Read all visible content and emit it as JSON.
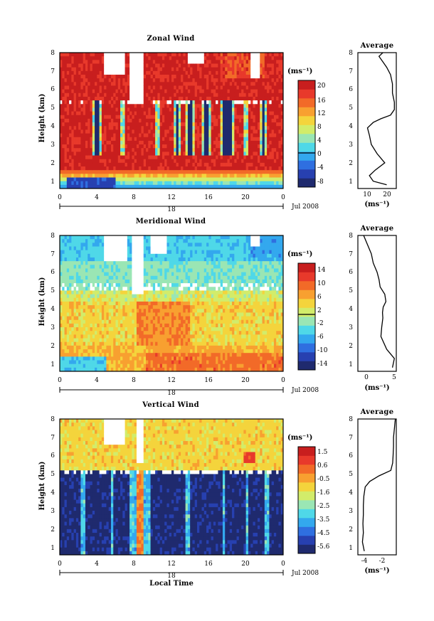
{
  "figure": {
    "x_axis_title": "Local Time",
    "date_label": "Jul 2008",
    "day_label": "18"
  },
  "panels": [
    {
      "title": "Zonal Wind",
      "ylabel": "Height (km)",
      "x_ticks": [
        "0",
        "4",
        "8",
        "12",
        "16",
        "20",
        "0"
      ],
      "y_ticks": [
        "1",
        "2",
        "3",
        "4",
        "5",
        "6",
        "7",
        "8"
      ],
      "colorbar_label": "(ms⁻¹)",
      "colorbar_ticks": [
        "20",
        "16",
        "12",
        "8",
        "4",
        "0",
        "-4",
        "-8"
      ],
      "avg_title": "Average",
      "avg_ticks": [
        "10",
        "20"
      ],
      "avg_unit": "(ms⁻¹)"
    },
    {
      "title": "Meridional Wind",
      "ylabel": "Height (km)",
      "x_ticks": [
        "0",
        "4",
        "8",
        "12",
        "16",
        "20",
        "0"
      ],
      "y_ticks": [
        "1",
        "2",
        "3",
        "4",
        "5",
        "6",
        "7",
        "8"
      ],
      "colorbar_label": "(ms⁻¹)",
      "colorbar_ticks": [
        "14",
        "10",
        "6",
        "2",
        "-2",
        "-6",
        "-10",
        "-14"
      ],
      "avg_title": "Average",
      "avg_ticks": [
        "0",
        "5"
      ],
      "avg_unit": "(ms⁻¹)"
    },
    {
      "title": "Vertical Wind",
      "ylabel": "Height (km)",
      "x_ticks": [
        "0",
        "4",
        "8",
        "12",
        "16",
        "20",
        "0"
      ],
      "y_ticks": [
        "1",
        "2",
        "3",
        "4",
        "5",
        "6",
        "7",
        "8"
      ],
      "colorbar_label": "(ms⁻¹)",
      "colorbar_ticks": [
        "1.5",
        "0.6",
        "-0.5",
        "-1.6",
        "-2.5",
        "-3.5",
        "-4.5",
        "-5.6"
      ],
      "avg_title": "Average",
      "avg_ticks": [
        "-4",
        "-2"
      ],
      "avg_unit": "(ms⁻¹)"
    }
  ],
  "colors": {
    "palette": [
      "#1f2a6e",
      "#2740b0",
      "#2f6fe0",
      "#33a8ee",
      "#4fd8e8",
      "#9ae6b4",
      "#d2ec6a",
      "#f4d43c",
      "#f8a030",
      "#f26a28",
      "#e8392b",
      "#c81e1e"
    ],
    "contour": "#000000",
    "missing": "#ffffff"
  },
  "chart_data": [
    {
      "type": "heatmap",
      "title": "Zonal Wind",
      "xlabel": "Local Time",
      "ylabel": "Height (km)",
      "xlim": [
        0,
        24
      ],
      "ylim": [
        0.6,
        8
      ],
      "clim": [
        -8,
        22
      ],
      "colorbar_ticks": [
        20,
        16,
        12,
        8,
        4,
        0,
        -4,
        -8
      ],
      "contour_levels": [
        0
      ],
      "grid": false,
      "mean_profile": {
        "title": "Average",
        "xlim": [
          5,
          25
        ],
        "ylim": [
          0.6,
          8
        ],
        "x": [
          20,
          13,
          11,
          14,
          19,
          15,
          12,
          11,
          10,
          13,
          17,
          22,
          24,
          24,
          23,
          23,
          22,
          20,
          18,
          16,
          18
        ],
        "y": [
          0.8,
          1.0,
          1.3,
          1.6,
          2.0,
          2.5,
          3.0,
          3.5,
          3.9,
          4.2,
          4.4,
          4.6,
          4.9,
          5.3,
          5.8,
          6.3,
          6.8,
          7.2,
          7.5,
          7.8,
          8.0
        ]
      }
    },
    {
      "type": "heatmap",
      "title": "Meridional Wind",
      "xlabel": "Local Time",
      "ylabel": "Height (km)",
      "xlim": [
        0,
        24
      ],
      "ylim": [
        0.6,
        8
      ],
      "clim": [
        -16,
        16
      ],
      "colorbar_ticks": [
        14,
        10,
        6,
        2,
        -2,
        -6,
        -10,
        -14
      ],
      "contour_levels": [
        0
      ],
      "grid": false,
      "mean_profile": {
        "title": "Average",
        "xlim": [
          -4,
          6
        ],
        "ylim": [
          0.6,
          8
        ],
        "x": [
          5,
          5.5,
          3.5,
          2,
          2.2,
          2.5,
          2.4,
          2.6,
          3.3,
          3,
          1.8,
          1.5,
          1,
          0,
          -0.5,
          -1.5,
          -2.5
        ],
        "y": [
          0.8,
          1.3,
          1.8,
          2.5,
          3.0,
          3.5,
          3.8,
          4.1,
          4.4,
          4.8,
          5.2,
          5.6,
          6.0,
          6.5,
          7.0,
          7.5,
          8.0
        ]
      }
    },
    {
      "type": "heatmap",
      "title": "Vertical Wind",
      "xlabel": "Local Time",
      "ylabel": "Height (km)",
      "xlim": [
        0,
        24
      ],
      "ylim": [
        0.6,
        8
      ],
      "clim": [
        -6,
        2
      ],
      "colorbar_ticks": [
        1.5,
        0.6,
        -0.5,
        -1.6,
        -2.5,
        -3.5,
        -4.5,
        -5.6
      ],
      "grid": false,
      "mean_profile": {
        "title": "Average",
        "xlim": [
          -4.8,
          -0.6
        ],
        "ylim": [
          0.6,
          8
        ],
        "x": [
          -4.1,
          -4.3,
          -4.2,
          -4.25,
          -4.2,
          -4.2,
          -4.15,
          -4.0,
          -3.5,
          -2.5,
          -1.2,
          -1.0,
          -0.95,
          -0.9,
          -0.9,
          -0.8,
          -0.75,
          -0.7
        ],
        "y": [
          0.8,
          1.3,
          1.8,
          2.3,
          2.8,
          3.3,
          3.8,
          4.3,
          4.6,
          4.9,
          5.2,
          5.6,
          6.0,
          6.5,
          7.0,
          7.5,
          7.8,
          8.0
        ]
      }
    }
  ]
}
